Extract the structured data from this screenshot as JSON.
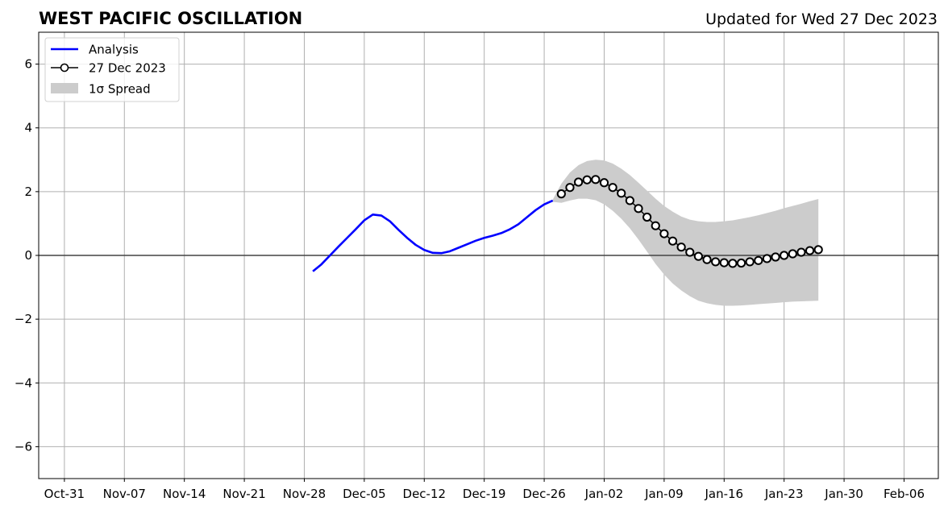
{
  "chart_data": {
    "type": "line",
    "title": "WEST PACIFIC OSCILLATION",
    "subtitle": "Updated for Wed 27 Dec 2023",
    "xlabel": "",
    "ylabel": "",
    "ylim": [
      -7,
      7
    ],
    "xlim": [
      "2023-10-28",
      "2024-02-10"
    ],
    "x_ticks": [
      "2023-10-31",
      "2023-11-07",
      "2023-11-14",
      "2023-11-21",
      "2023-11-28",
      "2023-12-05",
      "2023-12-12",
      "2023-12-19",
      "2023-12-26",
      "2024-01-02",
      "2024-01-09",
      "2024-01-16",
      "2024-01-23",
      "2024-01-30",
      "2024-02-06"
    ],
    "x_tick_labels": [
      "Oct-31",
      "Nov-07",
      "Nov-14",
      "Nov-21",
      "Nov-28",
      "Dec-05",
      "Dec-12",
      "Dec-19",
      "Dec-26",
      "Jan-02",
      "Jan-09",
      "Jan-16",
      "Jan-23",
      "Jan-30",
      "Feb-06"
    ],
    "y_ticks": [
      6,
      4,
      2,
      0,
      -2,
      -4,
      -6
    ],
    "y_tick_labels": [
      "6",
      "4",
      "2",
      "0",
      "−2",
      "−4",
      "−6"
    ],
    "grid": true,
    "zero_line": true,
    "legend_position": "upper-left",
    "legend": [
      {
        "label": "Analysis",
        "style": "line",
        "color": "#0000ff"
      },
      {
        "label": "27 Dec 2023",
        "style": "line-marker",
        "color": "#000000"
      },
      {
        "label": "1σ Spread",
        "style": "patch",
        "color": "#cccccc"
      }
    ],
    "series": [
      {
        "name": "Analysis",
        "color": "#0000ff",
        "x": [
          "2023-11-29",
          "2023-11-30",
          "2023-12-01",
          "2023-12-02",
          "2023-12-03",
          "2023-12-04",
          "2023-12-05",
          "2023-12-06",
          "2023-12-07",
          "2023-12-08",
          "2023-12-09",
          "2023-12-10",
          "2023-12-11",
          "2023-12-12",
          "2023-12-13",
          "2023-12-14",
          "2023-12-15",
          "2023-12-16",
          "2023-12-17",
          "2023-12-18",
          "2023-12-19",
          "2023-12-20",
          "2023-12-21",
          "2023-12-22",
          "2023-12-23",
          "2023-12-24",
          "2023-12-25",
          "2023-12-26",
          "2023-12-27"
        ],
        "y": [
          -0.5,
          -0.28,
          0.0,
          0.28,
          0.55,
          0.82,
          1.1,
          1.28,
          1.25,
          1.07,
          0.8,
          0.55,
          0.33,
          0.17,
          0.08,
          0.07,
          0.13,
          0.24,
          0.35,
          0.46,
          0.55,
          0.62,
          0.7,
          0.82,
          0.98,
          1.2,
          1.42,
          1.6,
          1.72
        ]
      },
      {
        "name": "27 Dec 2023",
        "color": "#000000",
        "marker": "circle",
        "x": [
          "2023-12-28",
          "2023-12-29",
          "2023-12-30",
          "2023-12-31",
          "2024-01-01",
          "2024-01-02",
          "2024-01-03",
          "2024-01-04",
          "2024-01-05",
          "2024-01-06",
          "2024-01-07",
          "2024-01-08",
          "2024-01-09",
          "2024-01-10",
          "2024-01-11",
          "2024-01-12",
          "2024-01-13",
          "2024-01-14",
          "2024-01-15",
          "2024-01-16",
          "2024-01-17",
          "2024-01-18",
          "2024-01-19",
          "2024-01-20",
          "2024-01-21",
          "2024-01-22",
          "2024-01-23",
          "2024-01-24",
          "2024-01-25",
          "2024-01-26",
          "2024-01-27"
        ],
        "y": [
          1.93,
          2.13,
          2.3,
          2.37,
          2.38,
          2.28,
          2.13,
          1.95,
          1.72,
          1.47,
          1.2,
          0.93,
          0.68,
          0.45,
          0.26,
          0.1,
          -0.03,
          -0.13,
          -0.2,
          -0.23,
          -0.25,
          -0.24,
          -0.2,
          -0.16,
          -0.1,
          -0.05,
          0.0,
          0.05,
          0.1,
          0.15,
          0.18
        ]
      }
    ],
    "spread": {
      "name": "1σ Spread",
      "color": "#cccccc",
      "x": [
        "2023-12-27",
        "2023-12-28",
        "2023-12-29",
        "2023-12-30",
        "2023-12-31",
        "2024-01-01",
        "2024-01-02",
        "2024-01-03",
        "2024-01-04",
        "2024-01-05",
        "2024-01-06",
        "2024-01-07",
        "2024-01-08",
        "2024-01-09",
        "2024-01-10",
        "2024-01-11",
        "2024-01-12",
        "2024-01-13",
        "2024-01-14",
        "2024-01-15",
        "2024-01-16",
        "2024-01-17",
        "2024-01-18",
        "2024-01-19",
        "2024-01-20",
        "2024-01-21",
        "2024-01-22",
        "2024-01-23",
        "2024-01-24",
        "2024-01-25",
        "2024-01-26",
        "2024-01-27"
      ],
      "upper": [
        1.75,
        2.25,
        2.6,
        2.83,
        2.96,
        3.0,
        2.98,
        2.88,
        2.72,
        2.52,
        2.28,
        2.03,
        1.78,
        1.55,
        1.37,
        1.22,
        1.12,
        1.07,
        1.05,
        1.05,
        1.07,
        1.1,
        1.15,
        1.2,
        1.26,
        1.33,
        1.4,
        1.48,
        1.55,
        1.62,
        1.7,
        1.77
      ],
      "lower": [
        1.68,
        1.65,
        1.72,
        1.78,
        1.78,
        1.73,
        1.6,
        1.4,
        1.15,
        0.85,
        0.5,
        0.12,
        -0.27,
        -0.6,
        -0.88,
        -1.1,
        -1.28,
        -1.42,
        -1.5,
        -1.55,
        -1.58,
        -1.58,
        -1.57,
        -1.55,
        -1.53,
        -1.51,
        -1.49,
        -1.47,
        -1.45,
        -1.44,
        -1.43,
        -1.42
      ]
    }
  }
}
